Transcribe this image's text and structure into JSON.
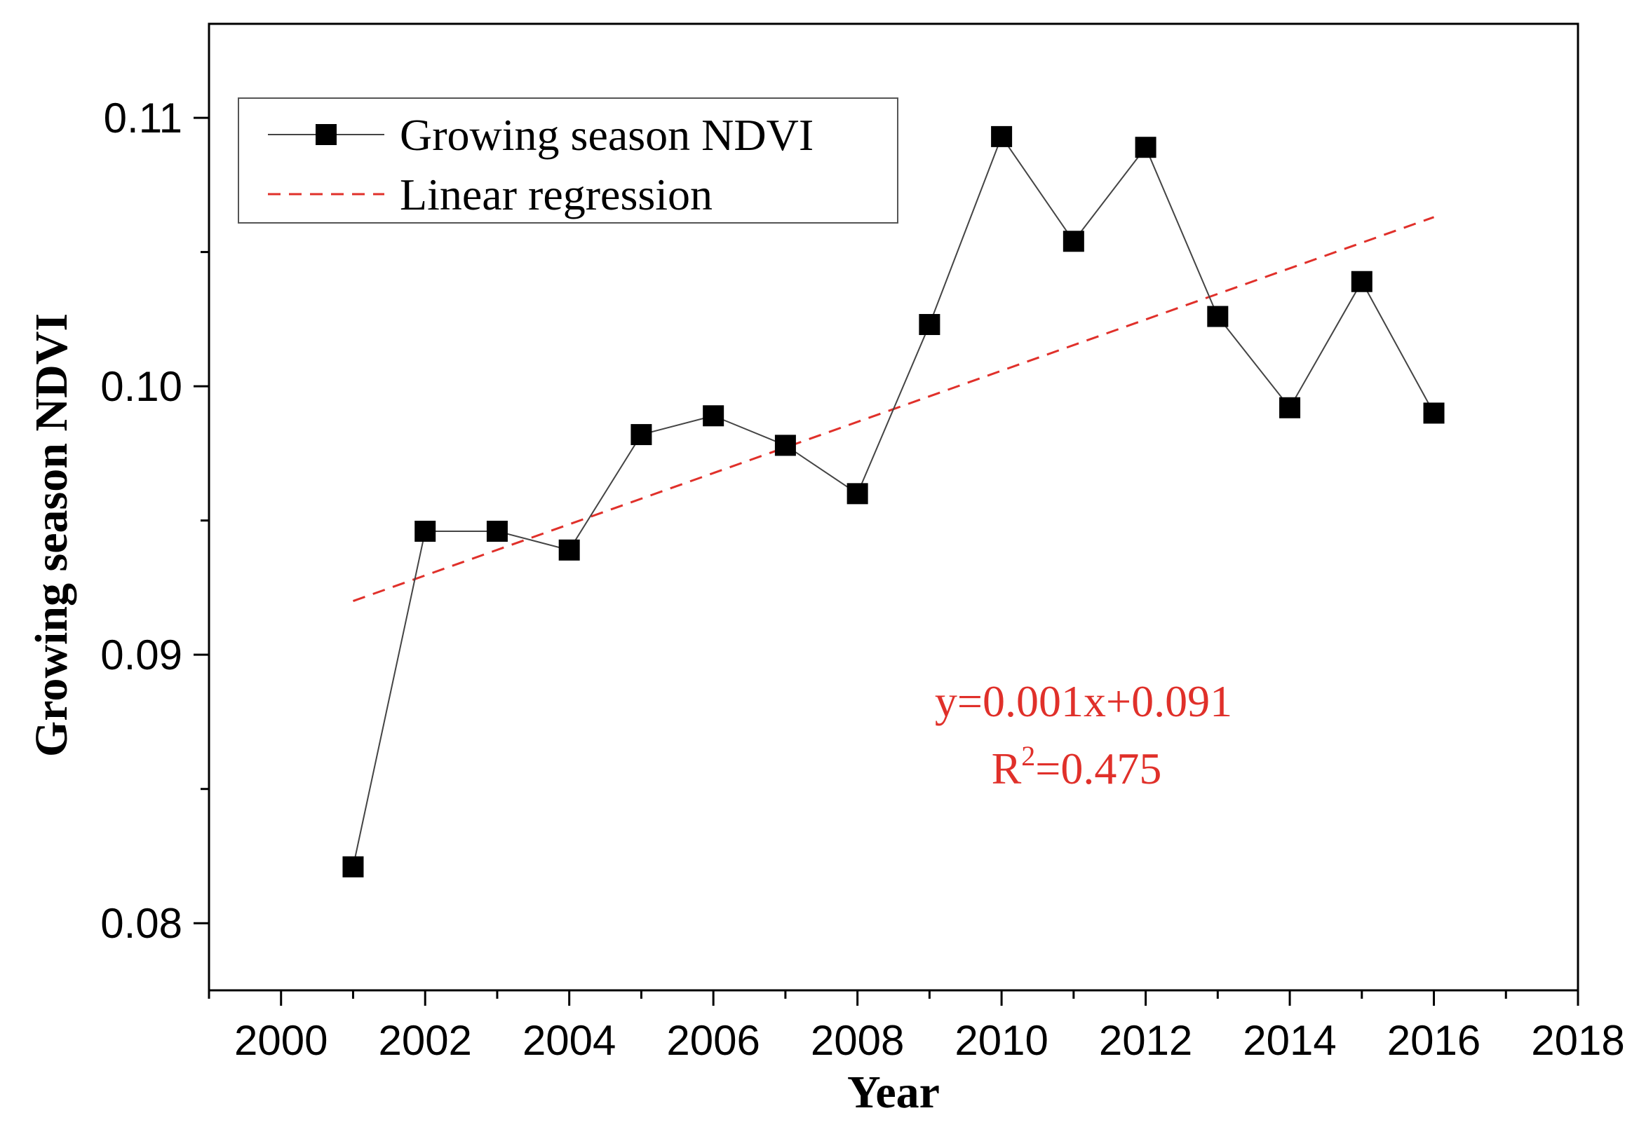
{
  "colors": {
    "series": "#000000",
    "line": "#444444",
    "regression": "#e0302a",
    "annotation": "#e0302a",
    "axis": "#000000",
    "background": "#ffffff"
  },
  "chart_data": {
    "type": "line",
    "title": "",
    "xlabel": "Year",
    "ylabel": "Growing season NDVI",
    "xlim": [
      1999,
      2018
    ],
    "ylim": [
      0.0775,
      0.1135
    ],
    "x_major_ticks": [
      2000,
      2002,
      2004,
      2006,
      2008,
      2010,
      2012,
      2014,
      2016,
      2018
    ],
    "x_tick_labels": [
      "2000",
      "2002",
      "2004",
      "2006",
      "2008",
      "2010",
      "2012",
      "2014",
      "2016",
      "2018"
    ],
    "y_major_ticks": [
      0.08,
      0.09,
      0.1,
      0.11
    ],
    "y_tick_labels": [
      "0.08",
      "0.09",
      "0.10",
      "0.11"
    ],
    "y_minor_ticks": [
      0.085,
      0.095,
      0.105
    ],
    "legend_position": "top-left",
    "grid": false,
    "series": [
      {
        "name": "Growing season NDVI",
        "marker": "square",
        "x": [
          2001,
          2002,
          2003,
          2004,
          2005,
          2006,
          2007,
          2008,
          2009,
          2010,
          2011,
          2012,
          2013,
          2014,
          2015,
          2016
        ],
        "values": [
          0.0821,
          0.0946,
          0.0946,
          0.0939,
          0.0982,
          0.0989,
          0.0978,
          0.096,
          0.1023,
          0.1093,
          0.1054,
          0.1089,
          0.1026,
          0.0992,
          0.1039,
          0.099
        ]
      },
      {
        "name": "Linear regression",
        "style": "dashed",
        "x": [
          2001,
          2016
        ],
        "values": [
          0.092,
          0.1063
        ]
      }
    ],
    "annotations": {
      "equation": "y=0.001x+0.091",
      "r2_prefix": "R",
      "r2_superscript": "2",
      "r2_value": "=0.475"
    }
  }
}
